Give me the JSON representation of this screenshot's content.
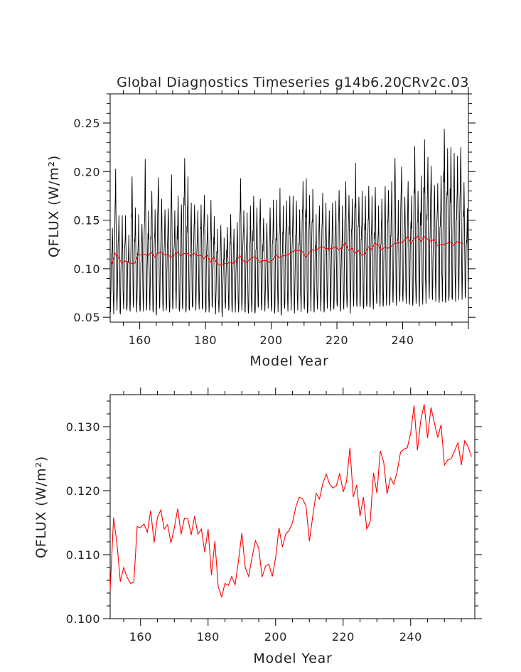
{
  "title": "Global Diagnostics Timeseries g14b6.20CRv2c.03",
  "chart_data": [
    {
      "type": "line",
      "title": "Global Diagnostics Timeseries g14b6.20CRv2c.03",
      "xlabel": "Model Year",
      "ylabel": "QFLUX (W/m²)",
      "xlim": [
        151,
        260
      ],
      "ylim": [
        0.045,
        0.28
      ],
      "xticks": [
        160,
        180,
        200,
        220,
        240
      ],
      "xtick_labels": [
        "160",
        "180",
        "200",
        "220",
        "240"
      ],
      "yticks": [
        0.05,
        0.1,
        0.15,
        0.2,
        0.25
      ],
      "ytick_labels": [
        "0.05",
        "0.10",
        "0.15",
        "0.20",
        "0.25"
      ],
      "series": [
        {
          "color": "#000000",
          "description": "monthly values, seasonal cycle",
          "annual_max": [
            0.142,
            0.203,
            0.155,
            0.155,
            0.155,
            0.135,
            0.195,
            0.163,
            0.156,
            0.146,
            0.213,
            0.16,
            0.18,
            0.161,
            0.194,
            0.172,
            0.161,
            0.162,
            0.197,
            0.16,
            0.175,
            0.166,
            0.214,
            0.195,
            0.168,
            0.166,
            0.16,
            0.166,
            0.176,
            0.156,
            0.171,
            0.154,
            0.141,
            0.145,
            0.132,
            0.143,
            0.156,
            0.141,
            0.148,
            0.193,
            0.16,
            0.158,
            0.165,
            0.175,
            0.163,
            0.172,
            0.152,
            0.147,
            0.163,
            0.171,
            0.171,
            0.183,
            0.165,
            0.17,
            0.175,
            0.175,
            0.17,
            0.161,
            0.19,
            0.193,
            0.176,
            0.182,
            0.156,
            0.165,
            0.178,
            0.168,
            0.16,
            0.168,
            0.17,
            0.181,
            0.165,
            0.19,
            0.176,
            0.172,
            0.209,
            0.174,
            0.18,
            0.175,
            0.185,
            0.175,
            0.184,
            0.165,
            0.172,
            0.185,
            0.181,
            0.19,
            0.214,
            0.171,
            0.205,
            0.174,
            0.19,
            0.175,
            0.226,
            0.18,
            0.196,
            0.233,
            0.215,
            0.206,
            0.186,
            0.188,
            0.196,
            0.244,
            0.224,
            0.225,
            0.219,
            0.216,
            0.225,
            0.189,
            0.162
          ],
          "annual_min": [
            0.055,
            0.053,
            0.057,
            0.053,
            0.058,
            0.057,
            0.056,
            0.06,
            0.055,
            0.056,
            0.056,
            0.057,
            0.057,
            0.055,
            0.052,
            0.059,
            0.056,
            0.057,
            0.055,
            0.058,
            0.059,
            0.056,
            0.058,
            0.055,
            0.057,
            0.06,
            0.057,
            0.058,
            0.058,
            0.055,
            0.055,
            0.06,
            0.053,
            0.055,
            0.05,
            0.059,
            0.057,
            0.055,
            0.055,
            0.055,
            0.057,
            0.055,
            0.054,
            0.055,
            0.054,
            0.06,
            0.057,
            0.056,
            0.059,
            0.056,
            0.054,
            0.055,
            0.052,
            0.059,
            0.056,
            0.057,
            0.054,
            0.057,
            0.055,
            0.058,
            0.054,
            0.056,
            0.055,
            0.058,
            0.056,
            0.055,
            0.059,
            0.056,
            0.058,
            0.061,
            0.056,
            0.058,
            0.06,
            0.054,
            0.061,
            0.061,
            0.061,
            0.059,
            0.061,
            0.06,
            0.058,
            0.064,
            0.061,
            0.061,
            0.062,
            0.062,
            0.065,
            0.062,
            0.066,
            0.066,
            0.064,
            0.063,
            0.062,
            0.064,
            0.061,
            0.063,
            0.064,
            0.069,
            0.068,
            0.066,
            0.065,
            0.066,
            0.065,
            0.067,
            0.068,
            0.066,
            0.068,
            0.068,
            0.07
          ]
        },
        {
          "color": "#ff0000",
          "description": "annual mean"
        }
      ]
    },
    {
      "type": "line",
      "title": "",
      "xlabel": "Model Year",
      "ylabel": "QFLUX (W/m²)",
      "xlim": [
        151,
        259
      ],
      "ylim": [
        0.1,
        0.135
      ],
      "xticks": [
        160,
        180,
        200,
        220,
        240
      ],
      "xtick_labels": [
        "160",
        "180",
        "200",
        "220",
        "240"
      ],
      "yticks": [
        0.1,
        0.11,
        0.12,
        0.13
      ],
      "ytick_labels": [
        "0.100",
        "0.110",
        "0.120",
        "0.130"
      ],
      "series": [
        {
          "color": "#ff0000",
          "description": "annual mean",
          "x_start": 151,
          "values": [
            0.1045,
            0.1158,
            0.1118,
            0.1058,
            0.108,
            0.1065,
            0.1055,
            0.1057,
            0.1144,
            0.1142,
            0.1148,
            0.1135,
            0.1169,
            0.1119,
            0.1158,
            0.117,
            0.114,
            0.1147,
            0.1118,
            0.1142,
            0.1172,
            0.1132,
            0.1157,
            0.1156,
            0.1131,
            0.116,
            0.1132,
            0.114,
            0.1104,
            0.114,
            0.1068,
            0.1121,
            0.105,
            0.1034,
            0.1055,
            0.1052,
            0.1066,
            0.1053,
            0.109,
            0.1134,
            0.108,
            0.1066,
            0.1095,
            0.1122,
            0.111,
            0.1065,
            0.1082,
            0.1085,
            0.1066,
            0.1095,
            0.1142,
            0.1112,
            0.1132,
            0.1138,
            0.115,
            0.1175,
            0.119,
            0.1187,
            0.1176,
            0.1121,
            0.116,
            0.1196,
            0.1187,
            0.1212,
            0.1226,
            0.121,
            0.1204,
            0.1208,
            0.1227,
            0.1198,
            0.1214,
            0.1267,
            0.119,
            0.1209,
            0.116,
            0.119,
            0.114,
            0.1151,
            0.1228,
            0.1196,
            0.1262,
            0.1245,
            0.1195,
            0.122,
            0.121,
            0.123,
            0.126,
            0.1265,
            0.1267,
            0.129,
            0.1333,
            0.1263,
            0.131,
            0.1335,
            0.1282,
            0.133,
            0.1307,
            0.1283,
            0.1303,
            0.124,
            0.1248,
            0.125,
            0.1262,
            0.1275,
            0.124,
            0.1278,
            0.1269,
            0.1253
          ]
        }
      ]
    }
  ]
}
